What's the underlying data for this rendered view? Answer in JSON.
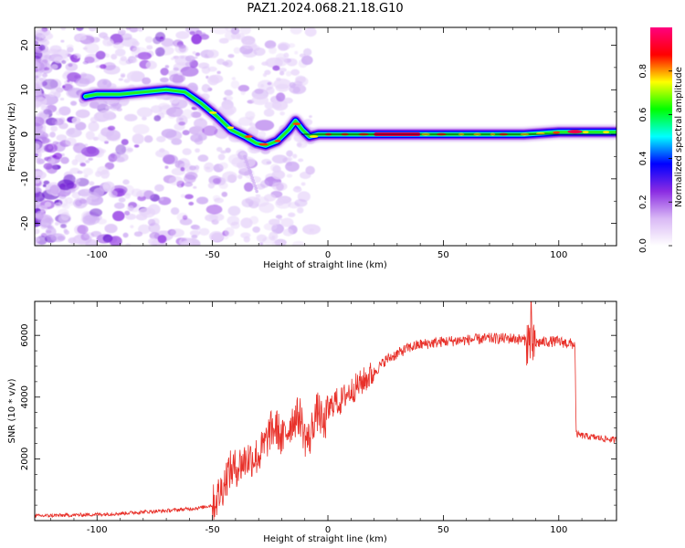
{
  "title": "PAZ1.2024.068.21.18.G10",
  "chart_data": [
    {
      "type": "heatmap",
      "xlabel": "Height of straight line (km)",
      "ylabel": "Frequency (Hz)",
      "xlim": [
        -127,
        125
      ],
      "ylim": [
        -25,
        24
      ],
      "xticks": [
        -100,
        -50,
        0,
        50,
        100
      ],
      "yticks": [
        20,
        10,
        0,
        -10,
        -20
      ],
      "colorbar": {
        "label": "Normalized spectral amplitude",
        "range": [
          0,
          1
        ],
        "ticks": [
          0.0,
          0.2,
          0.4,
          0.6,
          0.8
        ],
        "colors": [
          "#ffffff",
          "#d9b8f5",
          "#8a2be2",
          "#0000ff",
          "#00ffff",
          "#00ff00",
          "#ffff00",
          "#ff0000",
          "#ff007f"
        ]
      },
      "ridge": {
        "x": [
          -105,
          -100,
          -90,
          -80,
          -70,
          -62,
          -55,
          -48,
          -42,
          -36,
          -31,
          -27,
          -22,
          -17,
          -14,
          -11,
          -8,
          -4,
          0,
          10,
          25,
          40,
          55,
          70,
          85,
          100,
          110,
          125
        ],
        "y": [
          8.5,
          9,
          9,
          9.5,
          10,
          9.5,
          7,
          4,
          1,
          -0.5,
          -2,
          -2.5,
          -1.5,
          1,
          3,
          1,
          -0.5,
          0,
          0,
          0,
          0,
          0,
          0,
          0,
          0,
          0.5,
          0.5,
          0.5
        ],
        "peak_x": [
          20,
          40
        ]
      }
    },
    {
      "type": "line",
      "xlabel": "Height of straight line (km)",
      "ylabel": "SNR (10 * v/v)",
      "xlim": [
        -127,
        125
      ],
      "ylim": [
        0,
        7100
      ],
      "xticks": [
        -100,
        -50,
        0,
        50,
        100
      ],
      "yticks": [
        2000,
        4000,
        6000
      ],
      "color": "#e8312a",
      "series": [
        {
          "x": [
            -127,
            -110,
            -100,
            -90,
            -80,
            -70,
            -60,
            -55,
            -50,
            -46,
            -43,
            -40,
            -35,
            -30,
            -27,
            -25,
            -22,
            -20,
            -17,
            -15,
            -12,
            -10,
            -8,
            -6,
            -4,
            -2,
            0,
            3,
            5,
            8,
            10,
            15,
            20,
            25,
            30,
            35,
            40,
            45,
            50,
            60,
            70,
            80,
            85,
            88,
            90,
            95,
            100,
            107,
            107.5,
            110,
            115,
            120,
            125
          ],
          "y": [
            150,
            180,
            200,
            230,
            280,
            320,
            380,
            420,
            500,
            1000,
            1600,
            1700,
            2000,
            2100,
            2500,
            2900,
            3000,
            2600,
            3000,
            3300,
            3400,
            2700,
            2600,
            3300,
            3600,
            3000,
            3500,
            3900,
            3800,
            4100,
            4200,
            4500,
            4800,
            5200,
            5400,
            5600,
            5700,
            5750,
            5800,
            5850,
            5900,
            5900,
            5850,
            5800,
            5750,
            5800,
            5800,
            5700,
            2800,
            2750,
            2700,
            2650,
            2600
          ]
        }
      ]
    }
  ]
}
